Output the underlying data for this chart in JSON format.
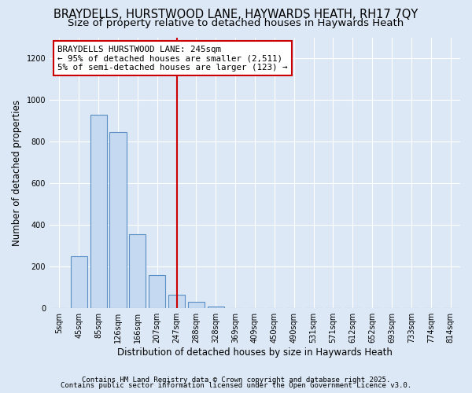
{
  "title": "BRAYDELLS, HURSTWOOD LANE, HAYWARDS HEATH, RH17 7QY",
  "subtitle": "Size of property relative to detached houses in Haywards Heath",
  "xlabel": "Distribution of detached houses by size in Haywards Heath",
  "ylabel": "Number of detached properties",
  "categories": [
    "5sqm",
    "45sqm",
    "85sqm",
    "126sqm",
    "166sqm",
    "207sqm",
    "247sqm",
    "288sqm",
    "328sqm",
    "369sqm",
    "409sqm",
    "450sqm",
    "490sqm",
    "531sqm",
    "571sqm",
    "612sqm",
    "652sqm",
    "693sqm",
    "733sqm",
    "774sqm",
    "814sqm"
  ],
  "values": [
    2,
    248,
    930,
    845,
    355,
    160,
    65,
    30,
    10,
    2,
    0,
    0,
    0,
    0,
    0,
    0,
    0,
    0,
    0,
    0,
    0
  ],
  "bar_color": "#c5d9f0",
  "bar_edge_color": "#5b8ec4",
  "vline_x_index": 6,
  "vline_color": "#cc0000",
  "annotation_text": "BRAYDELLS HURSTWOOD LANE: 245sqm\n← 95% of detached houses are smaller (2,511)\n5% of semi-detached houses are larger (123) →",
  "annotation_box_color": "white",
  "annotation_box_edge_color": "#cc0000",
  "ylim": [
    0,
    1300
  ],
  "yticks": [
    0,
    200,
    400,
    600,
    800,
    1000,
    1200
  ],
  "footer_line1": "Contains HM Land Registry data © Crown copyright and database right 2025.",
  "footer_line2": "Contains public sector information licensed under the Open Government Licence v3.0.",
  "background_color": "#dce8f5",
  "plot_bg_color": "#dce8f5",
  "title_fontsize": 10.5,
  "subtitle_fontsize": 9.5,
  "axis_label_fontsize": 8.5,
  "tick_fontsize": 7,
  "annotation_fontsize": 7.8,
  "footer_fontsize": 6.5
}
